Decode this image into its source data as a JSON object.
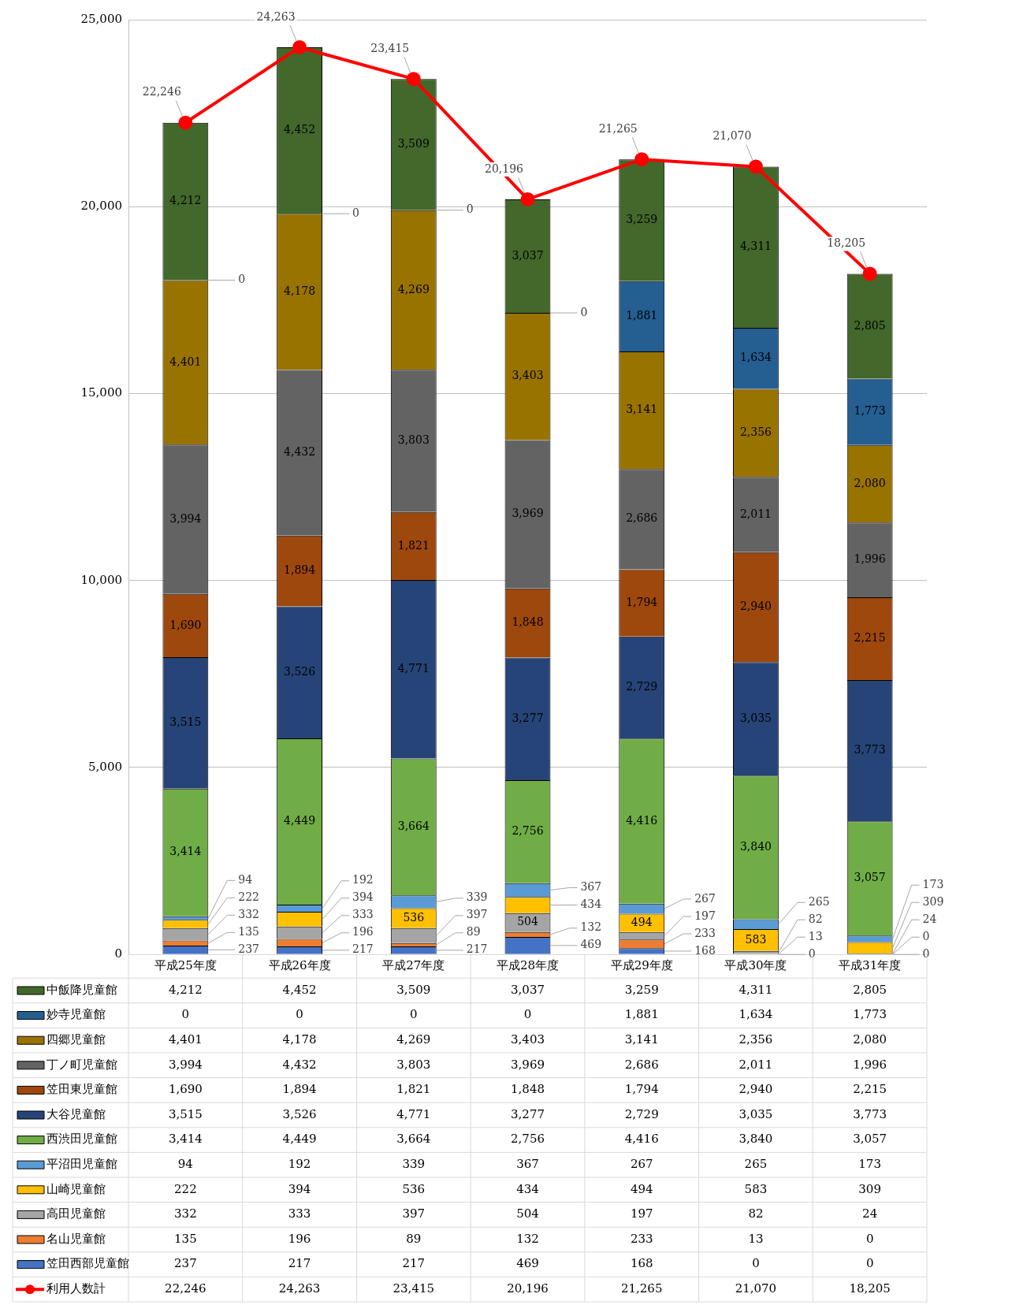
{
  "chart_data": {
    "type": "bar",
    "stacked": true,
    "grid": "y",
    "legend": "bottom",
    "marker": "circle",
    "categories": [
      "平成25年度",
      "平成26年度",
      "平成27年度",
      "平成28年度",
      "平成29年度",
      "平成30年度",
      "平成31年度"
    ],
    "ylim": [
      0,
      25000
    ],
    "yticks": [
      {
        "value": 0,
        "label": "0"
      },
      {
        "value": 5000,
        "label": "5,000"
      },
      {
        "value": 10000,
        "label": "10,000"
      },
      {
        "value": 15000,
        "label": "15,000"
      },
      {
        "value": 20000,
        "label": "20,000"
      },
      {
        "value": 25000,
        "label": "25,000"
      }
    ],
    "series": [
      {
        "name": "笠田西部児童館",
        "color": "#4472c4",
        "values": [
          237,
          217,
          217,
          469,
          168,
          0,
          0
        ],
        "value_labels": [
          "237",
          "217",
          "217",
          "469",
          "168",
          "0",
          "0"
        ]
      },
      {
        "name": "名山児童館",
        "color": "#ed7d31",
        "values": [
          135,
          196,
          89,
          132,
          233,
          13,
          0
        ],
        "value_labels": [
          "135",
          "196",
          "89",
          "132",
          "233",
          "13",
          "0"
        ]
      },
      {
        "name": "高田児童館",
        "color": "#a5a5a5",
        "values": [
          332,
          333,
          397,
          504,
          197,
          82,
          24
        ],
        "value_labels": [
          "332",
          "333",
          "397",
          "504",
          "197",
          "82",
          "24"
        ]
      },
      {
        "name": "山崎児童館",
        "color": "#ffc000",
        "values": [
          222,
          394,
          536,
          434,
          494,
          583,
          309
        ],
        "value_labels": [
          "222",
          "394",
          "536",
          "434",
          "494",
          "583",
          "309"
        ]
      },
      {
        "name": "平沼田児童館",
        "color": "#5b9bd5",
        "values": [
          94,
          192,
          339,
          367,
          267,
          265,
          173
        ],
        "value_labels": [
          "94",
          "192",
          "339",
          "367",
          "267",
          "265",
          "173"
        ]
      },
      {
        "name": "西渋田児童館",
        "color": "#70ad47",
        "values": [
          3414,
          4449,
          3664,
          2756,
          4416,
          3840,
          3057
        ],
        "value_labels": [
          "3,414",
          "4,449",
          "3,664",
          "2,756",
          "4,416",
          "3,840",
          "3,057"
        ]
      },
      {
        "name": "大谷児童館",
        "color": "#264478",
        "values": [
          3515,
          3526,
          4771,
          3277,
          2729,
          3035,
          3773
        ],
        "value_labels": [
          "3,515",
          "3,526",
          "4,771",
          "3,277",
          "2,729",
          "3,035",
          "3,773"
        ]
      },
      {
        "name": "笠田東児童館",
        "color": "#9e480e",
        "values": [
          1690,
          1894,
          1821,
          1848,
          1794,
          2940,
          2215
        ],
        "value_labels": [
          "1,690",
          "1,894",
          "1,821",
          "1,848",
          "1,794",
          "2,940",
          "2,215"
        ]
      },
      {
        "name": "丁ノ町児童館",
        "color": "#636363",
        "values": [
          3994,
          4432,
          3803,
          3969,
          2686,
          2011,
          1996
        ],
        "value_labels": [
          "3,994",
          "4,432",
          "3,803",
          "3,969",
          "2,686",
          "2,011",
          "1,996"
        ]
      },
      {
        "name": "四郷児童館",
        "color": "#997300",
        "values": [
          4401,
          4178,
          4269,
          3403,
          3141,
          2356,
          2080
        ],
        "value_labels": [
          "4,401",
          "4,178",
          "4,269",
          "3,403",
          "3,141",
          "2,356",
          "2,080"
        ]
      },
      {
        "name": "妙寺児童館",
        "color": "#255e91",
        "values": [
          0,
          0,
          0,
          0,
          1881,
          1634,
          1773
        ],
        "value_labels": [
          "0",
          "0",
          "0",
          "0",
          "1,881",
          "1,634",
          "1,773"
        ]
      },
      {
        "name": "中飯降児童館",
        "color": "#43682b",
        "values": [
          4212,
          4452,
          3509,
          3037,
          3259,
          4311,
          2805
        ],
        "value_labels": [
          "4,212",
          "4,452",
          "3,509",
          "3,037",
          "3,259",
          "4,311",
          "2,805"
        ]
      },
      {
        "name": "利用人数計",
        "type": "line",
        "color": "#ff0000",
        "values": [
          22246,
          24263,
          23415,
          20196,
          21265,
          21070,
          18205
        ],
        "value_labels": [
          "22,246",
          "24,263",
          "23,415",
          "20,196",
          "21,265",
          "21,070",
          "18,205"
        ]
      }
    ]
  }
}
